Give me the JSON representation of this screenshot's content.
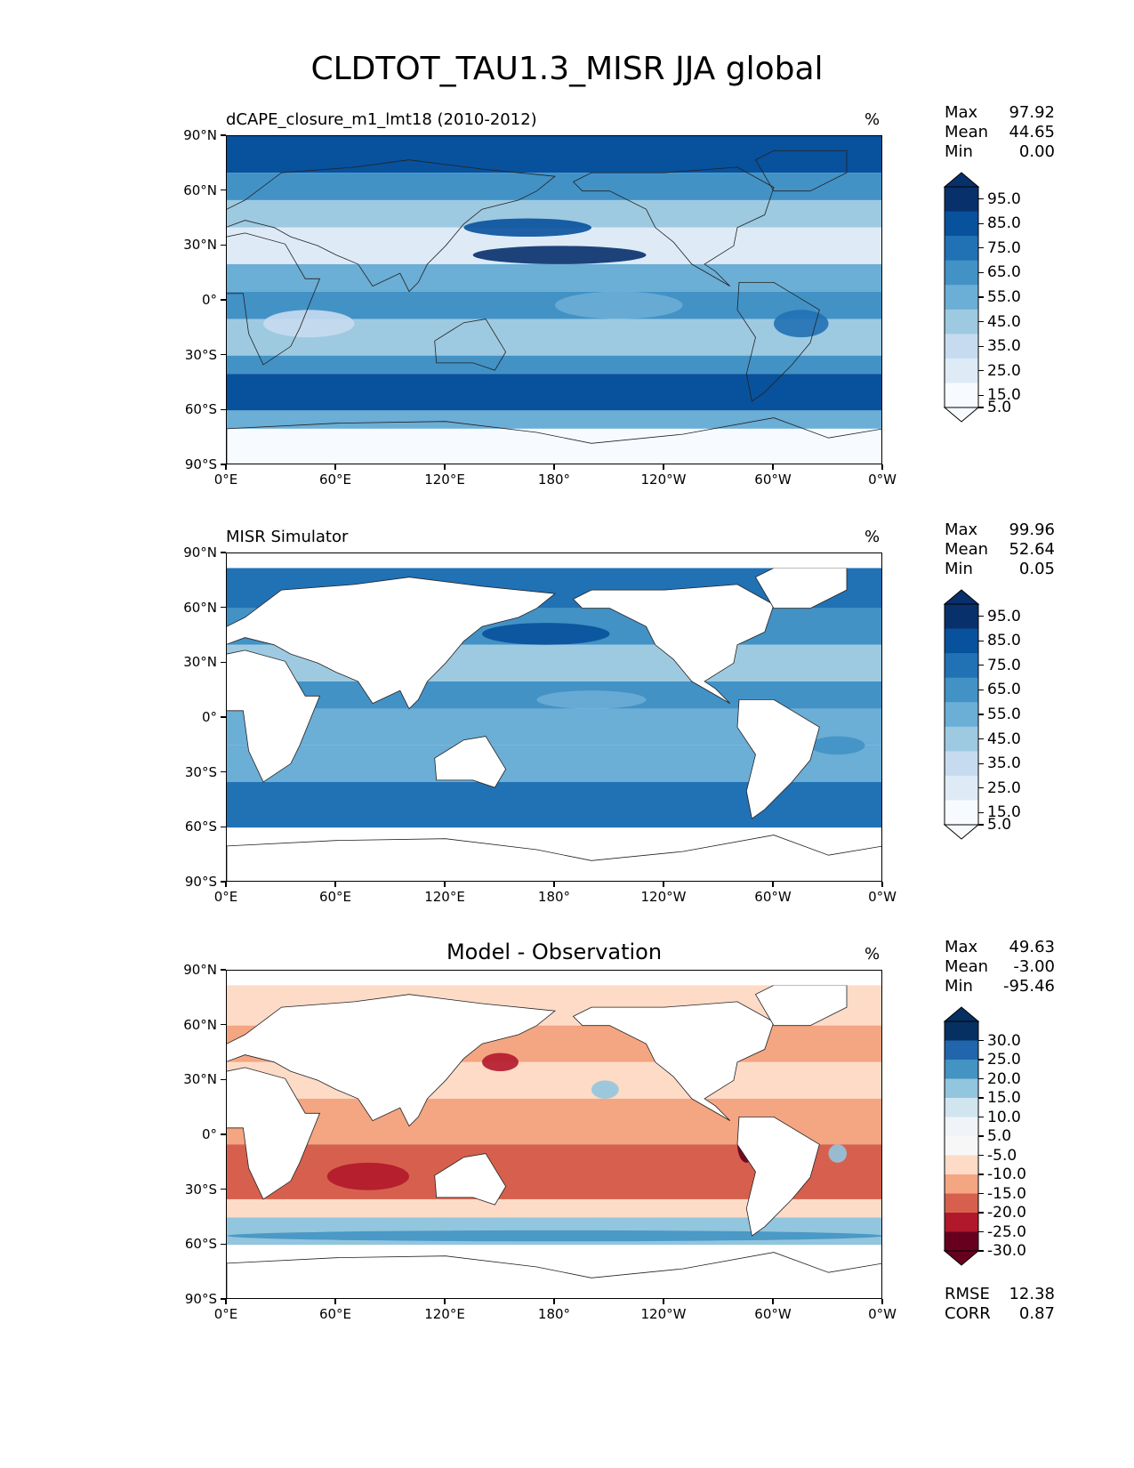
{
  "title": "CLDTOT_TAU1.3_MISR JJA global",
  "axes": {
    "lat_ticks": [
      "90°N",
      "60°N",
      "30°N",
      "0°",
      "30°S",
      "60°S",
      "90°S"
    ],
    "lon_ticks": [
      "0°E",
      "60°E",
      "120°E",
      "180°",
      "120°W",
      "60°W",
      "0°W"
    ]
  },
  "panels": [
    {
      "id": "test",
      "title": "dCAPE_closure_m1_lmt18 (2010-2012)",
      "title_position": "left",
      "units": "%",
      "stats": [
        {
          "label": "Max",
          "value": "97.92"
        },
        {
          "label": "Mean",
          "value": "44.65"
        },
        {
          "label": "Min",
          "value": "0.00"
        }
      ],
      "colorbar": {
        "labels": [
          "95.0",
          "85.0",
          "75.0",
          "65.0",
          "55.0",
          "45.0",
          "35.0",
          "25.0",
          "15.0",
          "5.0"
        ],
        "colors": [
          "#08306b",
          "#08519c",
          "#2171b5",
          "#4292c6",
          "#6baed6",
          "#9ecae1",
          "#c6dbef",
          "#deebf7",
          "#f7fbff"
        ]
      },
      "footer_stats": []
    },
    {
      "id": "ref",
      "title": "MISR Simulator",
      "title_position": "left",
      "units": "%",
      "stats": [
        {
          "label": "Max",
          "value": "99.96"
        },
        {
          "label": "Mean",
          "value": "52.64"
        },
        {
          "label": "Min",
          "value": "0.05"
        }
      ],
      "colorbar": {
        "labels": [
          "95.0",
          "85.0",
          "75.0",
          "65.0",
          "55.0",
          "45.0",
          "35.0",
          "25.0",
          "15.0",
          "5.0"
        ],
        "colors": [
          "#08306b",
          "#08519c",
          "#2171b5",
          "#4292c6",
          "#6baed6",
          "#9ecae1",
          "#c6dbef",
          "#deebf7",
          "#f7fbff"
        ]
      },
      "footer_stats": []
    },
    {
      "id": "diff",
      "title": "Model - Observation",
      "title_position": "center",
      "units": "%",
      "stats": [
        {
          "label": "Max",
          "value": "49.63"
        },
        {
          "label": "Mean",
          "value": "-3.00"
        },
        {
          "label": "Min",
          "value": "-95.46"
        }
      ],
      "colorbar": {
        "labels": [
          "30.0",
          "25.0",
          "20.0",
          "15.0",
          "10.0",
          "5.0",
          "-5.0",
          "-10.0",
          "-15.0",
          "-20.0",
          "-25.0",
          "-30.0"
        ],
        "colors": [
          "#053061",
          "#2166ac",
          "#4393c3",
          "#92c5de",
          "#d1e5f0",
          "#f0f4f8",
          "#f7f7f7",
          "#fddbc7",
          "#f4a582",
          "#d6604d",
          "#b2182b",
          "#67001f"
        ]
      },
      "footer_stats": [
        {
          "label": "RMSE",
          "value": "12.38"
        },
        {
          "label": "CORR",
          "value": "0.87"
        }
      ]
    }
  ]
}
